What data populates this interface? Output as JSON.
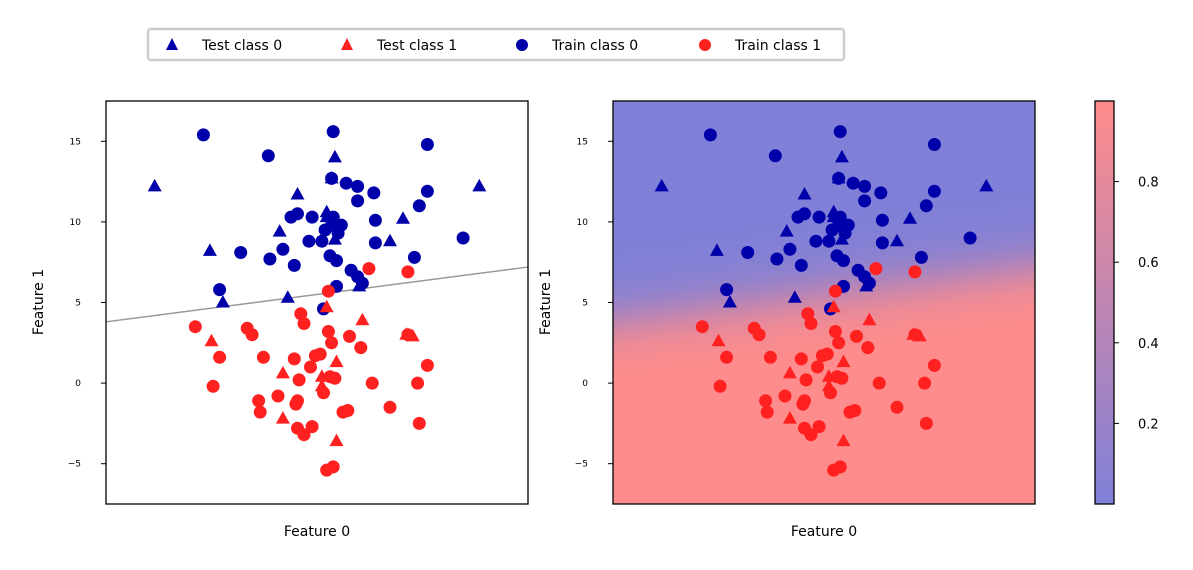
{
  "legend": {
    "placement": "top",
    "entries": [
      {
        "label": "Test class 0",
        "marker": "triangle",
        "color": "#0000aa"
      },
      {
        "label": "Test class 1",
        "marker": "triangle",
        "color": "#ff2020"
      },
      {
        "label": "Train class 0",
        "marker": "circle",
        "color": "#0000aa"
      },
      {
        "label": "Train class 1",
        "marker": "circle",
        "color": "#ff2020"
      }
    ]
  },
  "colors": {
    "class0": "#0000aa",
    "class1": "#ff2020",
    "region0": "#8080d8",
    "region1": "#ff8c8c",
    "boundary": "#999999"
  },
  "chart_data": [
    {
      "type": "scatter",
      "title": "",
      "xlabel": "Feature 0",
      "ylabel": "Feature 1",
      "xlim": [
        -13,
        13
      ],
      "ylim": [
        -7.5,
        17.5
      ],
      "xticks": [],
      "yticks": [
        -5,
        0,
        5,
        10,
        15
      ],
      "ytick_labels": [
        "−5",
        "0",
        "5",
        "10",
        "15"
      ],
      "decision_line": {
        "x": [
          -13,
          13
        ],
        "y": [
          3.8,
          7.2
        ]
      },
      "series": [
        {
          "name": "Train class 0",
          "marker": "circle",
          "color": "#0000aa",
          "points": [
            [
              -7,
              15.4
            ],
            [
              -3,
              14.1
            ],
            [
              1,
              15.6
            ],
            [
              6.8,
              14.8
            ],
            [
              0.9,
              12.7
            ],
            [
              1.8,
              12.4
            ],
            [
              2.5,
              12.2
            ],
            [
              3.5,
              11.8
            ],
            [
              2.5,
              11.3
            ],
            [
              6.8,
              11.9
            ],
            [
              -1.6,
              10.3
            ],
            [
              -1.2,
              10.5
            ],
            [
              -0.3,
              10.3
            ],
            [
              1,
              10.3
            ],
            [
              3.6,
              10.1
            ],
            [
              0.9,
              9.8
            ],
            [
              1.5,
              9.8
            ],
            [
              0.5,
              9.5
            ],
            [
              1.3,
              9.3
            ],
            [
              6.3,
              11
            ],
            [
              -0.5,
              8.8
            ],
            [
              0.3,
              8.8
            ],
            [
              -2.1,
              8.3
            ],
            [
              3.6,
              8.7
            ],
            [
              -4.7,
              8.1
            ],
            [
              -2.9,
              7.7
            ],
            [
              -1.4,
              7.3
            ],
            [
              0.8,
              7.9
            ],
            [
              1.2,
              7.6
            ],
            [
              2.1,
              7
            ],
            [
              2.5,
              6.6
            ],
            [
              2.8,
              6.2
            ],
            [
              6,
              7.8
            ],
            [
              9,
              9
            ],
            [
              1.2,
              6
            ],
            [
              -6,
              5.8
            ],
            [
              0.4,
              4.6
            ]
          ]
        },
        {
          "name": "Train class 1",
          "marker": "circle",
          "color": "#ff2020",
          "points": [
            [
              3.2,
              7.1
            ],
            [
              5.6,
              6.9
            ],
            [
              0.7,
              5.7
            ],
            [
              -7.5,
              3.5
            ],
            [
              -4.3,
              3.4
            ],
            [
              -1,
              4.3
            ],
            [
              -0.8,
              3.7
            ],
            [
              0.7,
              3.2
            ],
            [
              -4,
              3
            ],
            [
              0.9,
              2.5
            ],
            [
              2,
              2.9
            ],
            [
              2.7,
              2.2
            ],
            [
              5.6,
              3
            ],
            [
              -6,
              1.6
            ],
            [
              -3.3,
              1.6
            ],
            [
              -1.4,
              1.5
            ],
            [
              0.2,
              1.8
            ],
            [
              -0.1,
              1.7
            ],
            [
              -0.4,
              1
            ],
            [
              0.8,
              0.4
            ],
            [
              1.1,
              0.3
            ],
            [
              -1.1,
              0.2
            ],
            [
              3.4,
              0
            ],
            [
              6.2,
              0
            ],
            [
              6.8,
              1.1
            ],
            [
              -6.4,
              -0.2
            ],
            [
              -3.6,
              -1.1
            ],
            [
              -2.4,
              -0.8
            ],
            [
              -1.2,
              -1.1
            ],
            [
              -1.3,
              -1.3
            ],
            [
              0.4,
              -0.6
            ],
            [
              -3.5,
              -1.8
            ],
            [
              1.9,
              -1.7
            ],
            [
              1.6,
              -1.8
            ],
            [
              4.5,
              -1.5
            ],
            [
              -1.2,
              -2.8
            ],
            [
              -0.3,
              -2.7
            ],
            [
              -0.8,
              -3.2
            ],
            [
              6.3,
              -2.5
            ],
            [
              1,
              -5.2
            ],
            [
              0.6,
              -5.4
            ]
          ]
        },
        {
          "name": "Test class 0",
          "marker": "triangle",
          "color": "#0000aa",
          "points": [
            [
              -10,
              12.2
            ],
            [
              1.1,
              14
            ],
            [
              10,
              12.2
            ],
            [
              0.9,
              12.7
            ],
            [
              -1.2,
              11.7
            ],
            [
              -2.3,
              9.4
            ],
            [
              0.6,
              10.6
            ],
            [
              0.6,
              10.3
            ],
            [
              5.3,
              10.2
            ],
            [
              1.1,
              8.9
            ],
            [
              4.5,
              8.8
            ],
            [
              -6.6,
              8.2
            ],
            [
              2.6,
              6
            ],
            [
              -5.8,
              5
            ],
            [
              -1.8,
              5.3
            ]
          ]
        },
        {
          "name": "Test class 1",
          "marker": "triangle",
          "color": "#ff2020",
          "points": [
            [
              -6.5,
              2.6
            ],
            [
              0.6,
              4.7
            ],
            [
              2.8,
              3.9
            ],
            [
              5.9,
              2.9
            ],
            [
              5.5,
              3
            ],
            [
              -2.1,
              0.6
            ],
            [
              1.2,
              1.3
            ],
            [
              0.3,
              0.4
            ],
            [
              0.3,
              -0.2
            ],
            [
              -2.1,
              -2.2
            ],
            [
              1.2,
              -3.6
            ]
          ]
        }
      ]
    },
    {
      "type": "scatter",
      "title": "",
      "xlabel": "Feature 0",
      "ylabel": "Feature 1",
      "xlim": [
        -13,
        13
      ],
      "ylim": [
        -7.5,
        17.5
      ],
      "xticks": [],
      "yticks": [
        -5,
        0,
        5,
        10,
        15
      ],
      "ytick_labels": [
        "−5",
        "0",
        "5",
        "10",
        "15"
      ],
      "background": "predicted probability of class 1 (logistic model)",
      "probability_model": {
        "boundary_y_at_xmin": 3.8,
        "boundary_y_at_xmax": 7.2,
        "steepness": 1.1
      },
      "same_points_as": 0
    },
    {
      "type": "heatmap",
      "role": "colorbar",
      "range": [
        0.0,
        1.0
      ],
      "ticks": [
        0.2,
        0.4,
        0.6,
        0.8
      ],
      "tick_labels": [
        "0.2",
        "0.4",
        "0.6",
        "0.8"
      ],
      "color_low": "#8080d8",
      "color_high": "#ff8c8c"
    }
  ]
}
